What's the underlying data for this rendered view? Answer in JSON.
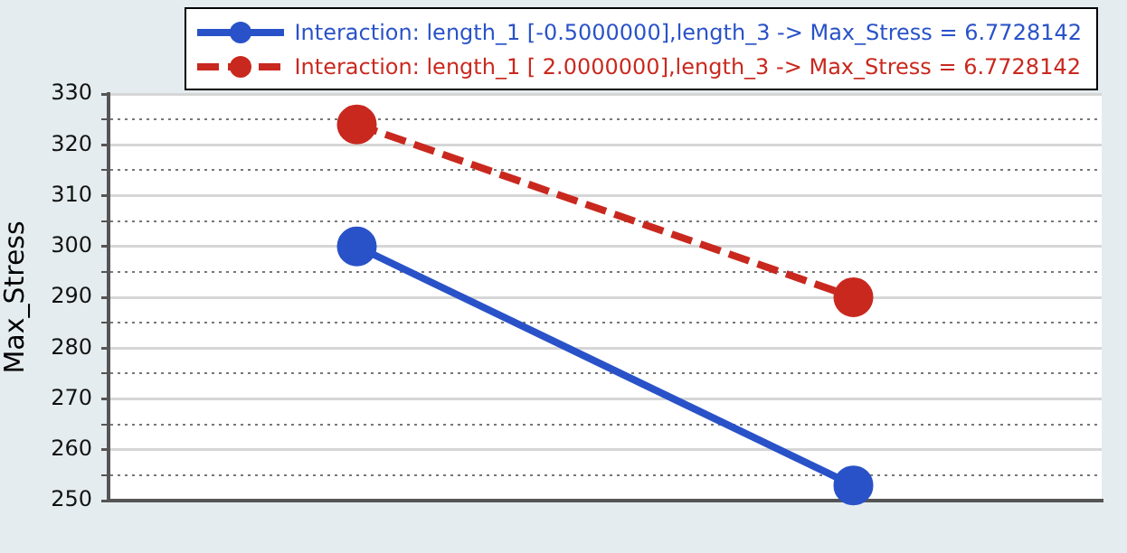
{
  "chart_data": {
    "type": "line",
    "ylabel": "Max_Stress",
    "categories": [
      null,
      null
    ],
    "ylim": [
      250,
      330
    ],
    "yticks": [
      250,
      {
        "value": 255,
        "label": null
      },
      260,
      {
        "value": 265,
        "label": null
      },
      270,
      {
        "value": 275,
        "label": null
      },
      280,
      {
        "value": 285,
        "label": null
      },
      290,
      {
        "value": 295,
        "label": null
      },
      300,
      {
        "value": 305,
        "label": null
      },
      310,
      {
        "value": 315,
        "label": null
      },
      320,
      {
        "value": 325,
        "label": null
      },
      330
    ],
    "tick_labels": "y",
    "grid": "y",
    "legend": "top",
    "marker": "circle",
    "series": [
      {
        "name": "Interaction: length_1 [-0.5000000],length_3 -> Max_Stress =  6.7728142",
        "color": "#2952c8",
        "values": [
          300,
          253
        ],
        "line_style": "solid"
      },
      {
        "name": "Interaction: length_1 [ 2.0000000],length_3 -> Max_Stress =  6.7728142",
        "color": "#c9281e",
        "values": [
          324,
          290
        ],
        "line_style": "dashed"
      }
    ]
  }
}
